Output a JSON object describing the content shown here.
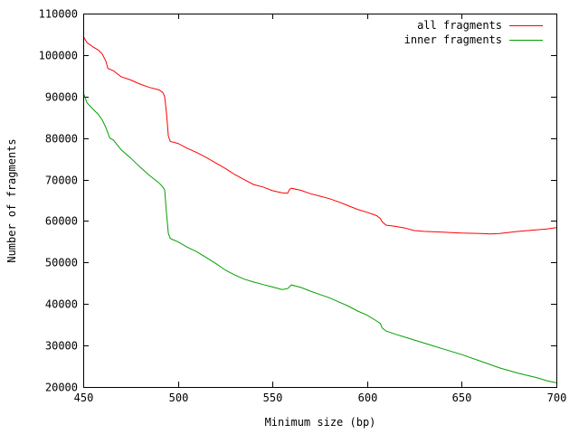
{
  "chart_data": {
    "type": "line",
    "xlabel": "Minimum size (bp)",
    "ylabel": "Number of fragments",
    "xlim": [
      450,
      700
    ],
    "ylim": [
      20000,
      110000
    ],
    "x_ticks": [
      450,
      500,
      550,
      600,
      650,
      700
    ],
    "y_ticks": [
      20000,
      30000,
      40000,
      50000,
      60000,
      70000,
      80000,
      90000,
      100000,
      110000
    ],
    "grid": false,
    "legend_position": "top-right",
    "series": [
      {
        "name": "all fragments",
        "color": "#ff0000",
        "points": [
          [
            450,
            104500
          ],
          [
            452,
            103000
          ],
          [
            455,
            102000
          ],
          [
            458,
            101200
          ],
          [
            460,
            100300
          ],
          [
            462,
            98500
          ],
          [
            463,
            96800
          ],
          [
            466,
            96200
          ],
          [
            470,
            94800
          ],
          [
            475,
            94000
          ],
          [
            480,
            93000
          ],
          [
            485,
            92200
          ],
          [
            490,
            91600
          ],
          [
            492,
            91000
          ],
          [
            493,
            90000
          ],
          [
            494,
            86000
          ],
          [
            495,
            80500
          ],
          [
            496,
            79200
          ],
          [
            500,
            78700
          ],
          [
            505,
            77500
          ],
          [
            510,
            76500
          ],
          [
            515,
            75300
          ],
          [
            520,
            74000
          ],
          [
            525,
            72700
          ],
          [
            530,
            71200
          ],
          [
            535,
            70000
          ],
          [
            540,
            68800
          ],
          [
            545,
            68200
          ],
          [
            550,
            67300
          ],
          [
            555,
            66800
          ],
          [
            558,
            66700
          ],
          [
            559,
            67600
          ],
          [
            560,
            67900
          ],
          [
            565,
            67400
          ],
          [
            570,
            66600
          ],
          [
            575,
            66000
          ],
          [
            580,
            65400
          ],
          [
            585,
            64600
          ],
          [
            590,
            63700
          ],
          [
            595,
            62800
          ],
          [
            600,
            62100
          ],
          [
            605,
            61300
          ],
          [
            607,
            60600
          ],
          [
            608,
            59800
          ],
          [
            610,
            59000
          ],
          [
            615,
            58700
          ],
          [
            620,
            58300
          ],
          [
            625,
            57700
          ],
          [
            630,
            57500
          ],
          [
            640,
            57300
          ],
          [
            650,
            57100
          ],
          [
            660,
            57000
          ],
          [
            665,
            56900
          ],
          [
            670,
            57000
          ],
          [
            680,
            57500
          ],
          [
            690,
            57900
          ],
          [
            695,
            58100
          ],
          [
            700,
            58400
          ]
        ]
      },
      {
        "name": "inner fragments",
        "color": "#00a000",
        "points": [
          [
            450,
            91000
          ],
          [
            452,
            88500
          ],
          [
            455,
            87000
          ],
          [
            458,
            85700
          ],
          [
            460,
            84400
          ],
          [
            462,
            82500
          ],
          [
            464,
            80000
          ],
          [
            466,
            79500
          ],
          [
            470,
            77200
          ],
          [
            475,
            75200
          ],
          [
            480,
            73000
          ],
          [
            485,
            71000
          ],
          [
            490,
            69200
          ],
          [
            492,
            68200
          ],
          [
            493,
            67500
          ],
          [
            494,
            62000
          ],
          [
            495,
            57000
          ],
          [
            496,
            55800
          ],
          [
            500,
            55000
          ],
          [
            505,
            53700
          ],
          [
            510,
            52600
          ],
          [
            515,
            51200
          ],
          [
            520,
            49800
          ],
          [
            525,
            48200
          ],
          [
            530,
            47000
          ],
          [
            535,
            46000
          ],
          [
            540,
            45300
          ],
          [
            545,
            44700
          ],
          [
            550,
            44100
          ],
          [
            555,
            43500
          ],
          [
            558,
            43700
          ],
          [
            560,
            44600
          ],
          [
            565,
            44000
          ],
          [
            570,
            43100
          ],
          [
            575,
            42300
          ],
          [
            580,
            41500
          ],
          [
            585,
            40500
          ],
          [
            590,
            39500
          ],
          [
            595,
            38300
          ],
          [
            600,
            37300
          ],
          [
            605,
            35900
          ],
          [
            607,
            35300
          ],
          [
            608,
            34200
          ],
          [
            610,
            33500
          ],
          [
            615,
            32700
          ],
          [
            620,
            32000
          ],
          [
            625,
            31300
          ],
          [
            630,
            30600
          ],
          [
            635,
            29900
          ],
          [
            640,
            29200
          ],
          [
            650,
            27800
          ],
          [
            660,
            26200
          ],
          [
            670,
            24600
          ],
          [
            680,
            23300
          ],
          [
            690,
            22200
          ],
          [
            695,
            21500
          ],
          [
            700,
            21000
          ]
        ]
      }
    ]
  }
}
